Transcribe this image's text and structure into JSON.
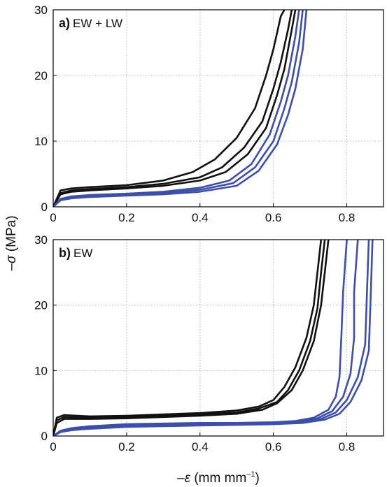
{
  "figure": {
    "xlabel": {
      "prefix": "–",
      "symbol": "ε",
      "unit": " (mm mm",
      "sup": "–1",
      "close": ")"
    },
    "ylabel": {
      "prefix": "–",
      "symbol": "σ",
      "unit": " (MPa)"
    }
  },
  "colors": {
    "series_a": "#111111",
    "series_b": "#3d4fa8"
  },
  "chart_data": [
    {
      "type": "line",
      "panel_letter": "a)",
      "panel_text": "EW + LW",
      "xlim": [
        0,
        0.9
      ],
      "ylim": [
        0,
        30
      ],
      "xticks": [
        0,
        0.2,
        0.4,
        0.6,
        0.8
      ],
      "xtick_labels": [
        "0",
        "0.2",
        "0.4",
        "0.6",
        "0.8"
      ],
      "yticks": [
        0,
        10,
        20,
        30
      ],
      "ytick_labels": [
        "0",
        "10",
        "20",
        "30"
      ],
      "grid": true,
      "series": [
        {
          "color": "#111111",
          "x": [
            0,
            0.02,
            0.05,
            0.1,
            0.2,
            0.3,
            0.38,
            0.44,
            0.5,
            0.55,
            0.58,
            0.6,
            0.62,
            0.63
          ],
          "y": [
            0,
            2.5,
            2.8,
            3.0,
            3.3,
            4.0,
            5.3,
            7.2,
            10.5,
            15,
            20,
            24,
            29,
            30
          ]
        },
        {
          "color": "#111111",
          "x": [
            0,
            0.02,
            0.05,
            0.1,
            0.2,
            0.3,
            0.4,
            0.46,
            0.52,
            0.57,
            0.6,
            0.62,
            0.64,
            0.65
          ],
          "y": [
            0,
            2.1,
            2.5,
            2.7,
            3.0,
            3.5,
            4.5,
            6.0,
            9.0,
            13,
            18,
            22,
            27,
            30
          ]
        },
        {
          "color": "#111111",
          "x": [
            0,
            0.02,
            0.05,
            0.1,
            0.2,
            0.3,
            0.4,
            0.47,
            0.53,
            0.58,
            0.61,
            0.63,
            0.65,
            0.66
          ],
          "y": [
            0,
            1.9,
            2.3,
            2.5,
            2.8,
            3.2,
            4.0,
            5.3,
            8.0,
            12,
            17,
            21,
            27,
            30
          ]
        },
        {
          "color": "#3d4fa8",
          "x": [
            0,
            0.02,
            0.05,
            0.1,
            0.2,
            0.3,
            0.4,
            0.48,
            0.54,
            0.59,
            0.62,
            0.64,
            0.66,
            0.67
          ],
          "y": [
            0,
            1.2,
            1.6,
            1.8,
            2.0,
            2.3,
            2.9,
            4.0,
            6.5,
            11,
            16,
            20,
            26,
            30
          ]
        },
        {
          "color": "#3d4fa8",
          "x": [
            0,
            0.02,
            0.05,
            0.1,
            0.2,
            0.3,
            0.4,
            0.49,
            0.55,
            0.6,
            0.63,
            0.65,
            0.67,
            0.68
          ],
          "y": [
            0,
            1.1,
            1.5,
            1.7,
            1.9,
            2.1,
            2.6,
            3.6,
            6.0,
            10,
            15,
            19,
            25,
            30
          ]
        },
        {
          "color": "#3d4fa8",
          "x": [
            0,
            0.02,
            0.05,
            0.1,
            0.2,
            0.3,
            0.4,
            0.5,
            0.56,
            0.61,
            0.64,
            0.66,
            0.68,
            0.69
          ],
          "y": [
            0,
            1.0,
            1.3,
            1.5,
            1.7,
            1.9,
            2.3,
            3.2,
            5.5,
            9.5,
            14,
            18,
            24,
            30
          ]
        }
      ]
    },
    {
      "type": "line",
      "panel_letter": "b)",
      "panel_text": "EW",
      "xlim": [
        0,
        0.9
      ],
      "ylim": [
        0,
        30
      ],
      "xticks": [
        0,
        0.2,
        0.4,
        0.6,
        0.8
      ],
      "xtick_labels": [
        "0",
        "0.2",
        "0.4",
        "0.6",
        "0.8"
      ],
      "yticks": [
        0,
        10,
        20,
        30
      ],
      "ytick_labels": [
        "0",
        "10",
        "20",
        "30"
      ],
      "grid": true,
      "series": [
        {
          "color": "#111111",
          "x": [
            0,
            0.01,
            0.03,
            0.1,
            0.2,
            0.3,
            0.4,
            0.5,
            0.56,
            0.6,
            0.63,
            0.66,
            0.69,
            0.71,
            0.72,
            0.73
          ],
          "y": [
            0,
            2.8,
            3.2,
            3.0,
            3.1,
            3.3,
            3.5,
            3.9,
            4.5,
            5.5,
            7.5,
            10.5,
            15,
            20,
            25,
            30
          ]
        },
        {
          "color": "#111111",
          "x": [
            0,
            0.01,
            0.03,
            0.1,
            0.2,
            0.3,
            0.4,
            0.5,
            0.56,
            0.61,
            0.64,
            0.67,
            0.7,
            0.72,
            0.73,
            0.74
          ],
          "y": [
            0,
            2.4,
            2.9,
            2.8,
            2.9,
            3.1,
            3.3,
            3.6,
            4.2,
            5.2,
            7.0,
            10,
            14.5,
            19.5,
            25,
            30
          ]
        },
        {
          "color": "#111111",
          "x": [
            0,
            0.01,
            0.03,
            0.1,
            0.2,
            0.3,
            0.4,
            0.5,
            0.57,
            0.61,
            0.65,
            0.68,
            0.71,
            0.73,
            0.74,
            0.75
          ],
          "y": [
            0,
            2.0,
            2.6,
            2.6,
            2.7,
            2.9,
            3.1,
            3.4,
            4.0,
            5.0,
            7.0,
            10,
            14.5,
            20,
            25,
            30
          ]
        },
        {
          "color": "#3d4fa8",
          "x": [
            0,
            0.02,
            0.05,
            0.1,
            0.2,
            0.3,
            0.4,
            0.5,
            0.6,
            0.66,
            0.71,
            0.75,
            0.77,
            0.78,
            0.785,
            0.79,
            0.8
          ],
          "y": [
            0,
            0.8,
            1.2,
            1.5,
            1.8,
            1.9,
            2.0,
            2.0,
            2.1,
            2.3,
            2.8,
            4.0,
            6.0,
            9.0,
            15,
            22,
            30
          ]
        },
        {
          "color": "#3d4fa8",
          "x": [
            0,
            0.02,
            0.05,
            0.1,
            0.2,
            0.3,
            0.4,
            0.5,
            0.6,
            0.67,
            0.72,
            0.76,
            0.79,
            0.81,
            0.82,
            0.82,
            0.83
          ],
          "y": [
            0,
            0.7,
            1.0,
            1.3,
            1.6,
            1.7,
            1.8,
            1.9,
            2.0,
            2.2,
            2.7,
            3.8,
            6.0,
            9.5,
            15,
            22,
            30
          ]
        },
        {
          "color": "#3d4fa8",
          "x": [
            0,
            0.02,
            0.05,
            0.1,
            0.2,
            0.3,
            0.4,
            0.5,
            0.6,
            0.68,
            0.73,
            0.77,
            0.8,
            0.83,
            0.85,
            0.855,
            0.86
          ],
          "y": [
            0,
            0.6,
            0.9,
            1.2,
            1.5,
            1.6,
            1.7,
            1.8,
            1.9,
            2.1,
            2.6,
            3.6,
            5.5,
            9.0,
            14,
            22,
            30
          ]
        },
        {
          "color": "#3d4fa8",
          "x": [
            0,
            0.02,
            0.05,
            0.1,
            0.2,
            0.3,
            0.4,
            0.5,
            0.6,
            0.68,
            0.74,
            0.78,
            0.81,
            0.84,
            0.86,
            0.865,
            0.87
          ],
          "y": [
            0,
            0.6,
            0.9,
            1.1,
            1.4,
            1.5,
            1.6,
            1.7,
            1.8,
            2.0,
            2.5,
            3.4,
            5.2,
            8.5,
            13,
            21,
            30
          ]
        }
      ]
    }
  ]
}
